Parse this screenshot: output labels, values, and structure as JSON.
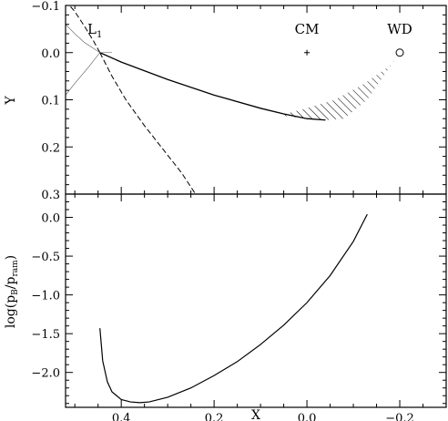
{
  "chart_data": [
    {
      "type": "line",
      "panel": "top",
      "xlim": [
        0.52,
        -0.3
      ],
      "ylim": [
        0.3,
        -0.1
      ],
      "ylabel": "Y",
      "y_ticks_major": [
        -0.1,
        0.0,
        0.1,
        0.2,
        0.3
      ],
      "y_tick_labels": [
        "−0.1",
        "0.0",
        "0.1",
        "0.2",
        "0.3"
      ],
      "series": [
        {
          "style": "solid",
          "x": [
            0.446,
            0.4,
            0.3,
            0.2,
            0.1,
            0.05,
            0.0,
            -0.04
          ],
          "y": [
            0.0,
            0.02,
            0.057,
            0.09,
            0.118,
            0.13,
            0.14,
            0.143
          ]
        },
        {
          "style": "dashed",
          "x": [
            0.446,
            0.46,
            0.48,
            0.5,
            0.52
          ],
          "y": [
            0.0,
            -0.025,
            -0.057,
            -0.087,
            -0.11
          ]
        },
        {
          "style": "dashed",
          "x": [
            0.446,
            0.42,
            0.39,
            0.35,
            0.31,
            0.27,
            0.24
          ],
          "y": [
            0.0,
            0.05,
            0.1,
            0.155,
            0.205,
            0.255,
            0.3
          ]
        },
        {
          "style": "thin",
          "x": [
            0.52,
            0.5,
            0.48,
            0.446,
            0.42
          ],
          "y": [
            -0.06,
            -0.04,
            -0.022,
            0.0,
            0.0
          ]
        },
        {
          "style": "thin",
          "x": [
            0.446,
            0.47,
            0.5,
            0.52
          ],
          "y": [
            0.0,
            0.03,
            0.065,
            0.09
          ]
        },
        {
          "style": "hatched-stream",
          "upper_x": [
            0.06,
            0.0,
            -0.06,
            -0.12,
            -0.18,
            -0.2
          ],
          "upper_y": [
            0.133,
            0.118,
            0.1,
            0.068,
            0.027,
            0.0
          ],
          "lower_x": [
            0.06,
            0.0,
            -0.04,
            -0.08,
            -0.13,
            -0.2
          ],
          "lower_y": [
            0.133,
            0.14,
            0.143,
            0.14,
            0.1,
            0.0
          ]
        }
      ],
      "markers": [
        {
          "name": "CM",
          "x": 0.0,
          "y": 0.0,
          "symbol": "+"
        },
        {
          "name": "WD",
          "x": -0.2,
          "y": 0.0,
          "symbol": "o"
        },
        {
          "name": "L1",
          "x": 0.446,
          "y": 0.0,
          "symbol": "none"
        }
      ],
      "annotations": {
        "l1": "L",
        "l1_sub": "1",
        "cm": "CM",
        "wd": "WD"
      }
    },
    {
      "type": "line",
      "panel": "bottom",
      "xlim": [
        0.52,
        -0.3
      ],
      "ylim": [
        -2.45,
        0.3
      ],
      "xlabel": "X",
      "ylabel": "log(p_B/p_ram)",
      "x_ticks_major": [
        0.4,
        0.2,
        0.0,
        -0.2
      ],
      "x_tick_labels": [
        "0.4",
        "0.2",
        "0.0",
        "−0.2"
      ],
      "y_ticks_major": [
        0.0,
        -0.5,
        -1.0,
        -1.5,
        -2.0
      ],
      "y_tick_labels": [
        "0.0",
        "−0.5",
        "−1.0",
        "−1.5",
        "−2.0"
      ],
      "series": [
        {
          "style": "solid",
          "x": [
            0.446,
            0.44,
            0.43,
            0.42,
            0.4,
            0.38,
            0.36,
            0.34,
            0.3,
            0.25,
            0.2,
            0.15,
            0.1,
            0.05,
            0.0,
            -0.05,
            -0.1,
            -0.13
          ],
          "y": [
            -1.43,
            -1.85,
            -2.12,
            -2.25,
            -2.35,
            -2.38,
            -2.39,
            -2.38,
            -2.32,
            -2.2,
            -2.04,
            -1.86,
            -1.64,
            -1.39,
            -1.1,
            -0.75,
            -0.31,
            0.04
          ]
        }
      ]
    }
  ]
}
